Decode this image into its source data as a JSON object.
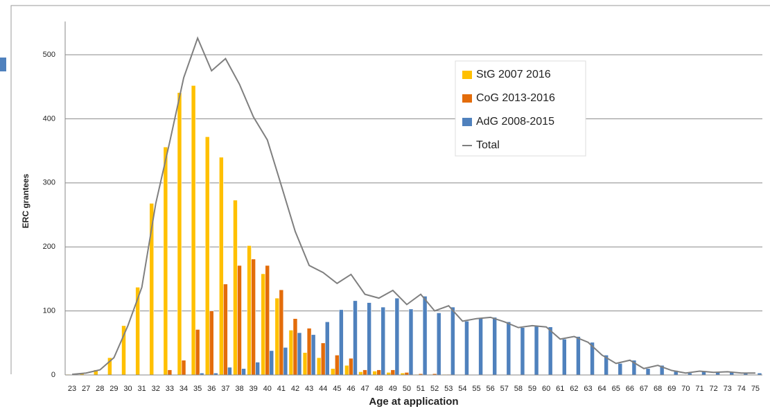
{
  "chart_data": {
    "type": "bar",
    "x_label": "Age at application",
    "y_label": "ERC grantees",
    "categories": [
      "23",
      "27",
      "28",
      "29",
      "30",
      "31",
      "32",
      "33",
      "34",
      "35",
      "36",
      "37",
      "38",
      "39",
      "40",
      "41",
      "42",
      "43",
      "44",
      "45",
      "46",
      "47",
      "48",
      "49",
      "50",
      "51",
      "52",
      "53",
      "54",
      "55",
      "56",
      "57",
      "58",
      "59",
      "60",
      "61",
      "62",
      "63",
      "64",
      "65",
      "66",
      "67",
      "68",
      "69",
      "70",
      "71",
      "72",
      "73",
      "74",
      "75"
    ],
    "series": [
      {
        "name": "StG 2007 2016",
        "color": "#ffc000",
        "values": [
          1,
          3,
          8,
          27,
          77,
          137,
          268,
          356,
          441,
          452,
          372,
          340,
          273,
          202,
          158,
          120,
          70,
          35,
          27,
          10,
          15,
          5,
          6,
          4,
          3,
          1,
          1,
          1,
          0,
          0,
          0,
          0,
          0,
          0,
          0,
          0,
          0,
          0,
          0,
          0,
          0,
          0,
          0,
          0,
          0,
          0,
          0,
          0,
          0,
          0
        ]
      },
      {
        "name": "CoG 2013-2016",
        "color": "#e36c0a",
        "values": [
          0,
          0,
          0,
          0,
          0,
          0,
          0,
          8,
          23,
          71,
          100,
          142,
          171,
          181,
          171,
          133,
          88,
          73,
          50,
          31,
          26,
          8,
          8,
          8,
          4,
          2,
          2,
          1,
          0,
          0,
          0,
          0,
          0,
          0,
          0,
          0,
          0,
          0,
          0,
          0,
          0,
          0,
          0,
          0,
          0,
          0,
          0,
          0,
          0,
          0
        ]
      },
      {
        "name": "AdG 2008-2015",
        "color": "#4f81bd",
        "values": [
          0,
          0,
          0,
          0,
          0,
          0,
          0,
          0,
          0,
          3,
          3,
          12,
          10,
          20,
          38,
          43,
          66,
          63,
          83,
          102,
          116,
          113,
          106,
          120,
          103,
          123,
          97,
          106,
          84,
          88,
          90,
          83,
          74,
          77,
          75,
          56,
          60,
          51,
          31,
          18,
          23,
          10,
          15,
          7,
          3,
          6,
          4,
          5,
          3,
          3
        ]
      },
      {
        "name": "Total",
        "color": "#7f7f7f",
        "line": true,
        "values": [
          1,
          3,
          8,
          27,
          77,
          137,
          268,
          364,
          464,
          526,
          475,
          494,
          454,
          403,
          367,
          296,
          224,
          171,
          160,
          143,
          157,
          126,
          120,
          132,
          110,
          126,
          100,
          108,
          84,
          88,
          90,
          83,
          74,
          77,
          75,
          56,
          60,
          51,
          31,
          18,
          23,
          10,
          15,
          7,
          3,
          6,
          4,
          5,
          3,
          3
        ]
      }
    ],
    "ylim": [
      0,
      552
    ],
    "yticks": [
      0,
      100,
      200,
      300,
      400,
      500
    ],
    "grid": true,
    "legend": "upper center"
  }
}
